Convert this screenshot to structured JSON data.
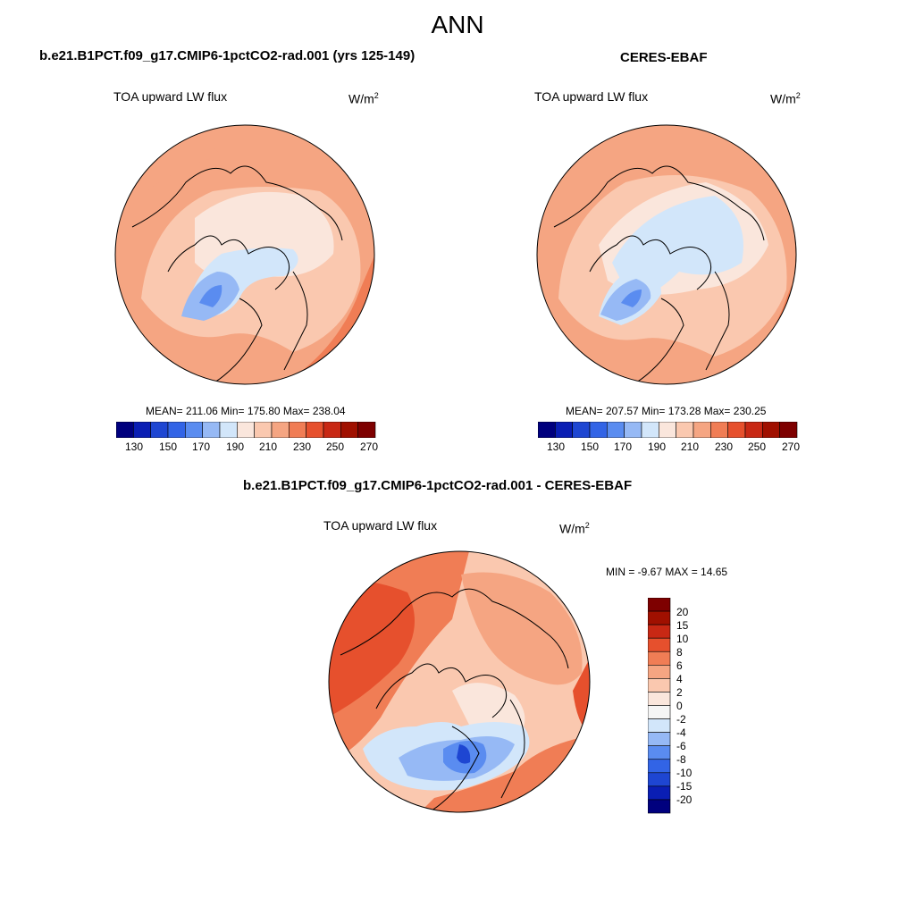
{
  "page_title": "ANN",
  "colors": {
    "abs_scale": [
      "#00007e",
      "#0a1eb4",
      "#1e46d2",
      "#3264e6",
      "#5a8cf0",
      "#96b9f5",
      "#d2e6fa",
      "#fae6dc",
      "#fac8af",
      "#f5a582",
      "#f07d55",
      "#e6502d",
      "#c82814",
      "#a01000",
      "#7e0000"
    ],
    "diff_scale": [
      "#00007e",
      "#0a1eb4",
      "#1e46d2",
      "#3264e6",
      "#5a8cf0",
      "#96b9f5",
      "#d2e6fa",
      "#f5f5f5",
      "#fae6dc",
      "#fac8af",
      "#f5a582",
      "#f07d55",
      "#e6502d",
      "#c82814",
      "#a01000",
      "#7e0000"
    ],
    "land_outline": "#000000"
  },
  "panels": {
    "model": {
      "heading": "b.e21.B1PCT.f09_g17.CMIP6-1pctCO2-rad.001 (yrs 125-149)",
      "variable": "TOA upward LW flux",
      "units_base": "W/m",
      "units_exp": "2",
      "stats": "MEAN= 211.06  Min= 175.80  Max= 238.04",
      "colorbar_labels": [
        "130",
        "150",
        "170",
        "190",
        "210",
        "230",
        "250",
        "270"
      ]
    },
    "obs": {
      "heading": "CERES-EBAF",
      "variable": "TOA upward LW flux",
      "units_base": "W/m",
      "units_exp": "2",
      "stats": "MEAN= 207.57  Min= 173.28  Max= 230.25",
      "colorbar_labels": [
        "130",
        "150",
        "170",
        "190",
        "210",
        "230",
        "250",
        "270"
      ]
    },
    "diff": {
      "heading": "b.e21.B1PCT.f09_g17.CMIP6-1pctCO2-rad.001 - CERES-EBAF",
      "variable": "TOA upward LW flux",
      "units_base": "W/m",
      "units_exp": "2",
      "stats": "MIN =  -9.67 MAX =  14.65",
      "colorbar_labels": [
        "20",
        "15",
        "10",
        "8",
        "6",
        "4",
        "2",
        "0",
        "-2",
        "-4",
        "-6",
        "-8",
        "-10",
        "-15",
        "-20"
      ]
    }
  },
  "chart_data": [
    {
      "type": "heatmap",
      "projection": "north-polar-stereographic",
      "title": "b.e21.B1PCT.f09_g17.CMIP6-1pctCO2-rad.001 (yrs 125-149)",
      "variable": "TOA upward LW flux",
      "units": "W/m2",
      "mean": 211.06,
      "min": 175.8,
      "max": 238.04,
      "levels": [
        130,
        140,
        150,
        160,
        170,
        180,
        190,
        200,
        210,
        220,
        230,
        240,
        250,
        260,
        270
      ]
    },
    {
      "type": "heatmap",
      "projection": "north-polar-stereographic",
      "title": "CERES-EBAF",
      "variable": "TOA upward LW flux",
      "units": "W/m2",
      "mean": 207.57,
      "min": 173.28,
      "max": 230.25,
      "levels": [
        130,
        140,
        150,
        160,
        170,
        180,
        190,
        200,
        210,
        220,
        230,
        240,
        250,
        260,
        270
      ]
    },
    {
      "type": "heatmap",
      "projection": "north-polar-stereographic",
      "title": "b.e21.B1PCT.f09_g17.CMIP6-1pctCO2-rad.001 - CERES-EBAF",
      "variable": "TOA upward LW flux",
      "units": "W/m2",
      "min": -9.67,
      "max": 14.65,
      "levels": [
        -20,
        -15,
        -10,
        -8,
        -6,
        -4,
        -2,
        0,
        2,
        4,
        6,
        8,
        10,
        15,
        20
      ]
    }
  ]
}
